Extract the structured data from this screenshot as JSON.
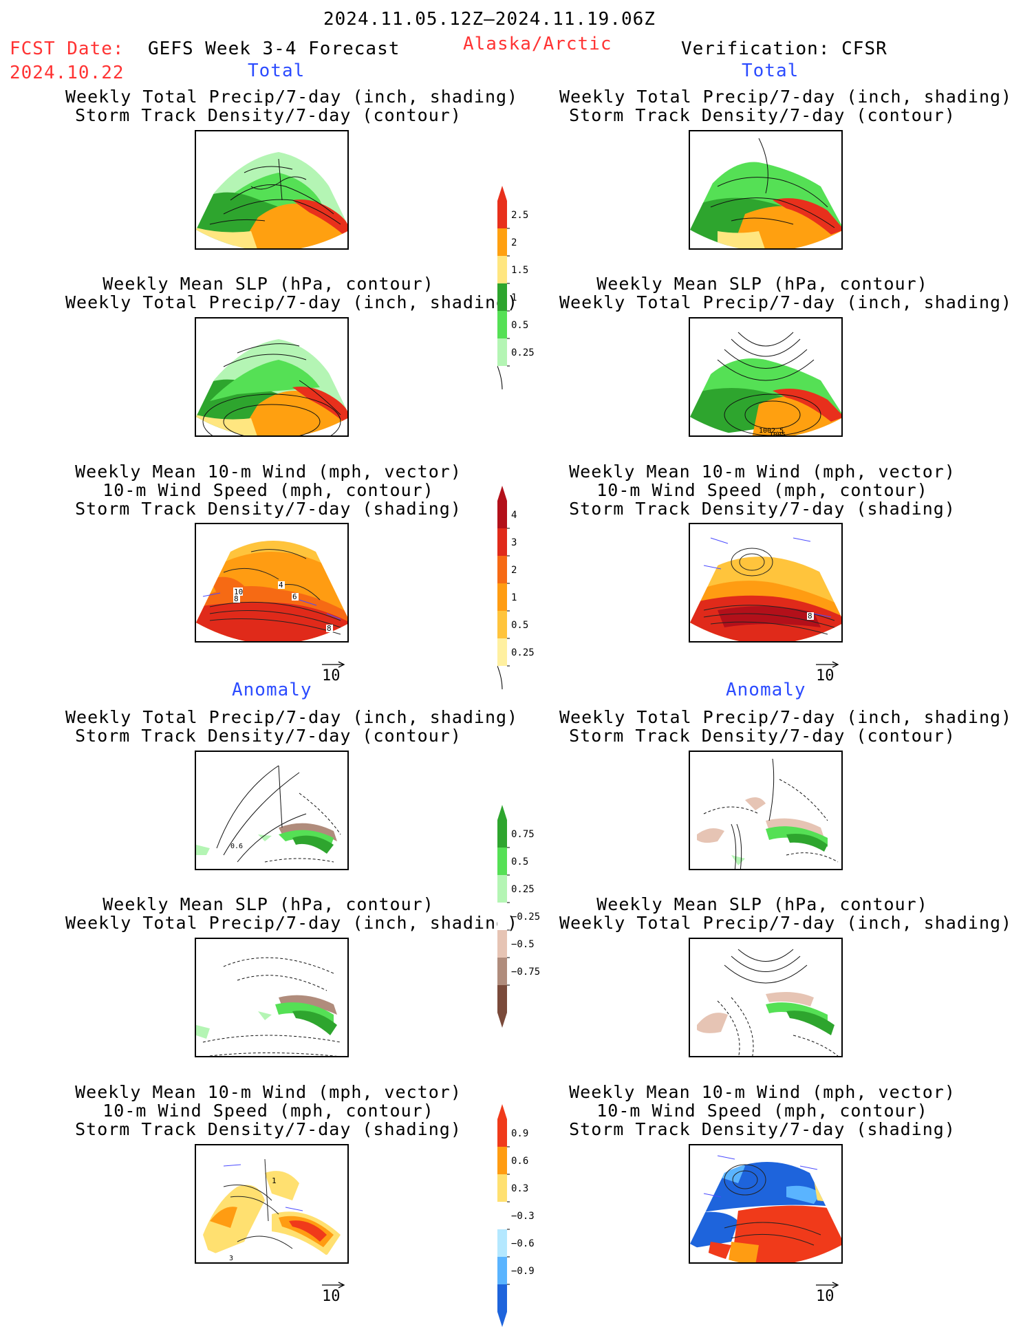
{
  "header": {
    "date_range": "2024.11.05.12Z–2024.11.19.06Z",
    "fcst_label": "FCST Date:",
    "fcst_date": "2024.10.22",
    "product": "GEFS Week 3-4 Forecast",
    "region": "Alaska/Arctic",
    "verification": "Verification: CFSR"
  },
  "sections": {
    "total": "Total",
    "anomaly": "Anomaly"
  },
  "titles": {
    "precip_storm": [
      "Weekly Total Precip/7-day (inch, shading)",
      "Storm Track Density/7-day (contour)"
    ],
    "slp_precip": [
      "Weekly Mean SLP (hPa, contour)",
      "Weekly Total Precip/7-day (inch, shading)"
    ],
    "wind_storm": [
      "Weekly Mean 10-m Wind (mph, vector)",
      "10-m Wind Speed (mph, contour)",
      "Storm Track Density/7-day (shading)"
    ]
  },
  "vector_ref": "10",
  "contour_labels": {
    "slp_right": [
      "1002.5",
      "1005"
    ],
    "wind_left": [
      "10",
      "8",
      "4",
      "6",
      "8"
    ],
    "wind_right": [
      "8"
    ],
    "anom_precip_left": [
      "0.6"
    ],
    "anom_wind_left": [
      "1",
      "3"
    ]
  },
  "colorbars": {
    "precip_total": {
      "labels": [
        "2.5",
        "2",
        "1.5",
        "1",
        "0.5",
        "0.25"
      ],
      "colors": [
        "#e8301c",
        "#ffa010",
        "#ffe680",
        "#2ea52e",
        "#55e055",
        "#b4f5b4"
      ]
    },
    "storm_total": {
      "labels": [
        "4",
        "3",
        "2",
        "1",
        "0.5",
        "0.25"
      ],
      "colors": [
        "#b3101a",
        "#e02a1a",
        "#f66a14",
        "#ff9c12",
        "#ffc43c",
        "#fff0a0"
      ]
    },
    "precip_anom": {
      "labels": [
        "0.75",
        "0.5",
        "0.25",
        "−0.25",
        "−0.5",
        "−0.75"
      ],
      "colors": [
        "#2ea52e",
        "#55e055",
        "#b4f5b4",
        "#ffffff",
        "#e6c4b4",
        "#b08c7c",
        "#7a4a3a"
      ]
    },
    "storm_anom": {
      "labels": [
        "0.9",
        "0.6",
        "0.3",
        "−0.3",
        "−0.6",
        "−0.9"
      ],
      "colors": [
        "#f03a1a",
        "#ff9c12",
        "#ffe070",
        "#ffffff",
        "#b4e8ff",
        "#5ab4ff",
        "#1e64dc"
      ]
    }
  }
}
